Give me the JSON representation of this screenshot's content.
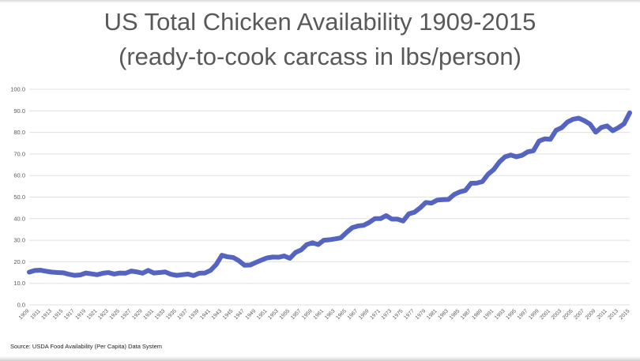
{
  "chart_data": {
    "type": "line",
    "title": "US Total Chicken Availability 1909-2015",
    "subtitle": "(ready-to-cook carcass in lbs/person)",
    "source": "Source: USDA Food Availability (Per Capita) Data System",
    "xlabel": "",
    "ylabel": "",
    "xlim": [
      1909,
      2015
    ],
    "ylim": [
      0,
      100
    ],
    "y_ticks": [
      "0.0",
      "10.0",
      "20.0",
      "30.0",
      "40.0",
      "50.0",
      "60.0",
      "70.0",
      "80.0",
      "90.0",
      "100.0"
    ],
    "x_ticks": [
      "1909",
      "1911",
      "1913",
      "1915",
      "1917",
      "1919",
      "1921",
      "1923",
      "1925",
      "1927",
      "1929",
      "1931",
      "1933",
      "1935",
      "1937",
      "1939",
      "1941",
      "1943",
      "1945",
      "1947",
      "1949",
      "1951",
      "1953",
      "1955",
      "1957",
      "1959",
      "1961",
      "1963",
      "1965",
      "1967",
      "1969",
      "1971",
      "1973",
      "1975",
      "1977",
      "1979",
      "1981",
      "1983",
      "1985",
      "1987",
      "1989",
      "1991",
      "1993",
      "1995",
      "1997",
      "1999",
      "2001",
      "2003",
      "2005",
      "2007",
      "2009",
      "2011",
      "2013",
      "2015"
    ],
    "grid": true,
    "line_color": "#5563c1",
    "grid_color": "#e0e0e0",
    "series": [
      {
        "x": [
          1909,
          1910,
          1911,
          1912,
          1913,
          1914,
          1915,
          1916,
          1917,
          1918,
          1919,
          1920,
          1921,
          1922,
          1923,
          1924,
          1925,
          1926,
          1927,
          1928,
          1929,
          1930,
          1931,
          1932,
          1933,
          1934,
          1935,
          1936,
          1937,
          1938,
          1939,
          1940,
          1941,
          1942,
          1943,
          1944,
          1945,
          1946,
          1947,
          1948,
          1949,
          1950,
          1951,
          1952,
          1953,
          1954,
          1955,
          1956,
          1957,
          1958,
          1959,
          1960,
          1961,
          1962,
          1963,
          1964,
          1965,
          1966,
          1967,
          1968,
          1969,
          1970,
          1971,
          1972,
          1973,
          1974,
          1975,
          1976,
          1977,
          1978,
          1979,
          1980,
          1981,
          1982,
          1983,
          1984,
          1985,
          1986,
          1987,
          1988,
          1989,
          1990,
          1991,
          1992,
          1993,
          1994,
          1995,
          1996,
          1997,
          1998,
          1999,
          2000,
          2001,
          2002,
          2003,
          2004,
          2005,
          2006,
          2007,
          2008,
          2009,
          2010,
          2011,
          2012,
          2013,
          2014,
          2015
        ],
        "values": [
          15.2,
          16.0,
          16.1,
          15.6,
          15.2,
          15.0,
          14.9,
          14.2,
          13.7,
          13.9,
          14.8,
          14.4,
          14.0,
          14.7,
          15.0,
          14.3,
          14.8,
          14.7,
          15.7,
          15.3,
          14.7,
          16.0,
          14.8,
          15.0,
          15.3,
          14.2,
          13.7,
          14.0,
          14.3,
          13.6,
          14.7,
          14.8,
          16.0,
          18.7,
          23.0,
          22.3,
          22.0,
          20.5,
          18.4,
          18.5,
          19.7,
          20.8,
          21.8,
          22.2,
          22.1,
          22.7,
          21.6,
          24.3,
          25.5,
          28.0,
          28.8,
          28.0,
          30.0,
          30.2,
          30.6,
          31.1,
          33.6,
          35.8,
          36.6,
          36.9,
          38.2,
          40.0,
          40.0,
          41.4,
          39.8,
          39.8,
          38.9,
          42.2,
          43.0,
          45.0,
          47.5,
          47.2,
          48.6,
          48.8,
          48.9,
          51.2,
          52.4,
          53.1,
          56.4,
          56.5,
          57.2,
          60.6,
          62.8,
          66.3,
          68.7,
          69.5,
          68.7,
          69.4,
          71.0,
          71.5,
          76.0,
          77.0,
          76.8,
          81.0,
          82.2,
          84.8,
          86.1,
          86.6,
          85.4,
          83.8,
          80.1,
          82.3,
          83.0,
          80.8,
          82.2,
          84.0,
          89.1
        ]
      }
    ]
  }
}
